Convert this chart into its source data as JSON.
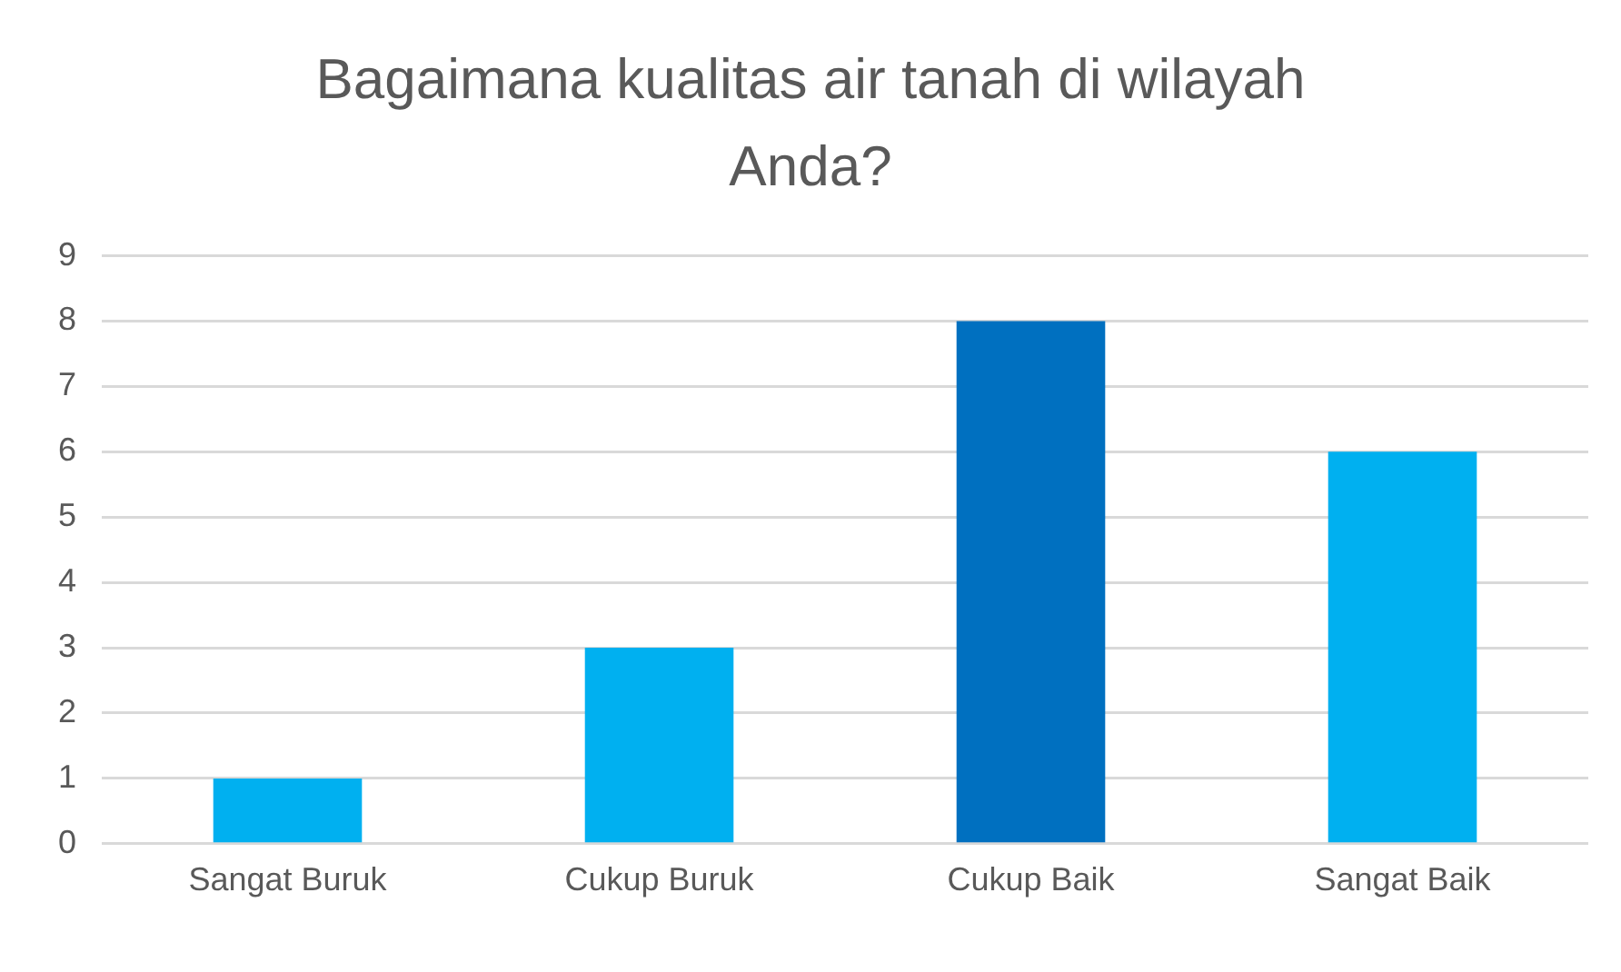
{
  "chart_data": {
    "type": "bar",
    "title": "Bagaimana kualitas air tanah di wilayah Anda?",
    "categories": [
      "Sangat Buruk",
      "Cukup Buruk",
      "Cukup Baik",
      "Sangat Baik"
    ],
    "values": [
      1,
      3,
      8,
      6
    ],
    "colors": [
      "#00b0f0",
      "#00b0f0",
      "#0070c0",
      "#00b0f0"
    ],
    "ylim": [
      0,
      9
    ],
    "yticks": [
      0,
      1,
      2,
      3,
      4,
      5,
      6,
      7,
      8,
      9
    ],
    "grid": "y",
    "legend": false
  }
}
